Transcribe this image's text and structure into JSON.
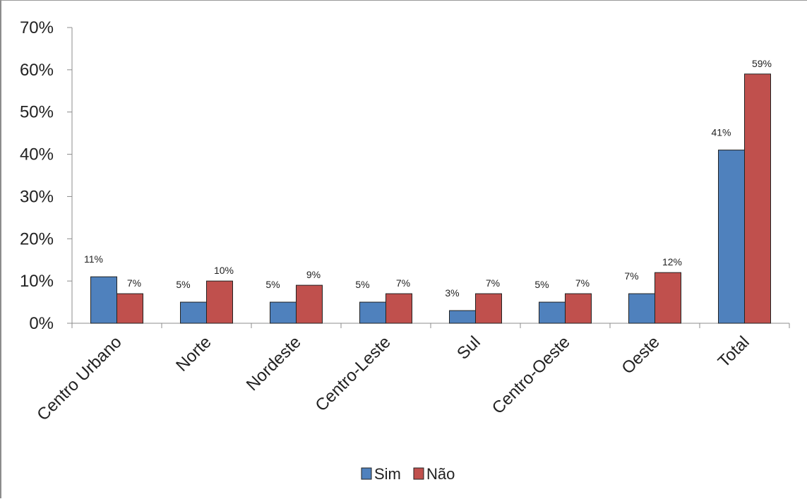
{
  "chart_data": {
    "type": "bar",
    "categories": [
      "Centro Urbano",
      "Norte",
      "Nordeste",
      "Centro-Leste",
      "Sul",
      "Centro-Oeste",
      "Oeste",
      "Total"
    ],
    "series": [
      {
        "name": "Sim",
        "values": [
          11,
          5,
          5,
          5,
          3,
          5,
          7,
          41
        ],
        "labels": [
          "11%",
          "5%",
          "5%",
          "5%",
          "3%",
          "5%",
          "7%",
          "41%"
        ],
        "color": "#4f81bd"
      },
      {
        "name": "Não",
        "values": [
          7,
          10,
          9,
          7,
          7,
          7,
          12,
          59
        ],
        "labels": [
          "7%",
          "10%",
          "9%",
          "7%",
          "7%",
          "7%",
          "12%",
          "59%"
        ],
        "color": "#c0504d"
      }
    ],
    "yticks": [
      0,
      10,
      20,
      30,
      40,
      50,
      60,
      70
    ],
    "ytick_labels": [
      "0%",
      "10%",
      "20%",
      "30%",
      "40%",
      "50%",
      "60%",
      "70%"
    ],
    "ylim": [
      0,
      70
    ],
    "grid": false,
    "legend": "bottom"
  }
}
